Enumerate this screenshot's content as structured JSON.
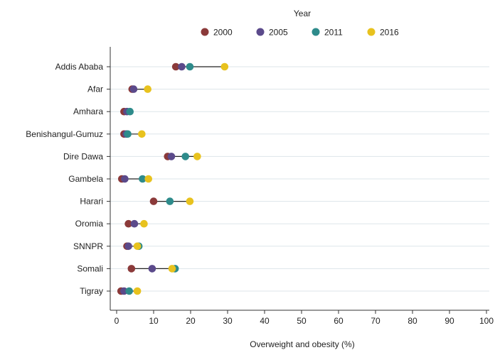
{
  "chart_data": {
    "type": "dot-range",
    "xlabel": "Overweight and obesity (%)",
    "ylabel": "",
    "xlim": [
      0,
      100
    ],
    "xticks": [
      "0",
      "10",
      "20",
      "30",
      "40",
      "50",
      "60",
      "70",
      "80",
      "90",
      "100"
    ],
    "grid": true,
    "legend": {
      "title": "Year",
      "placement": "top",
      "entries": [
        "2000",
        "2005",
        "2011",
        "2016"
      ]
    },
    "categories": [
      "Addis Ababa",
      "Afar",
      "Amhara",
      "Benishangul-Gumuz",
      "Dire Dawa",
      "Gambela",
      "Harari",
      "Oromia",
      "SNNPR",
      "Somali",
      "Tigray"
    ],
    "series": [
      {
        "name": "2000",
        "color": "#8b3a3a",
        "values": [
          16.0,
          4.2,
          2.0,
          2.0,
          13.8,
          1.4,
          10.0,
          3.2,
          2.8,
          4.0,
          1.2
        ]
      },
      {
        "name": "2005",
        "color": "#5b4a8b",
        "values": [
          17.6,
          4.6,
          2.8,
          2.6,
          14.8,
          2.2,
          null,
          4.8,
          3.2,
          9.6,
          2.0
        ]
      },
      {
        "name": "2011",
        "color": "#2e8b8b",
        "values": [
          19.8,
          null,
          3.6,
          3.0,
          18.6,
          7.0,
          14.4,
          null,
          6.0,
          15.8,
          3.4
        ]
      },
      {
        "name": "2016",
        "color": "#e8c21e",
        "values": [
          29.2,
          8.4,
          null,
          6.8,
          21.8,
          8.6,
          19.8,
          7.4,
          5.6,
          15.0,
          5.6
        ]
      }
    ]
  }
}
